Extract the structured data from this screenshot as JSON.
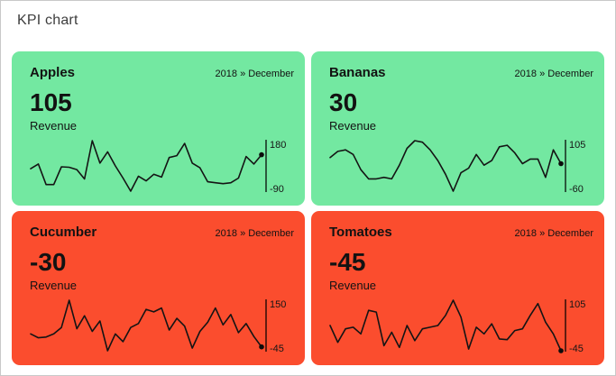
{
  "page": {
    "title": "KPI chart"
  },
  "colors": {
    "positive_card_bg": "#73e8a1",
    "negative_card_bg": "#fb4d2e",
    "sparkline_stroke": "#141414",
    "axis_stroke": "rgba(0,0,0,0.62)",
    "page_border": "#c9c9c9",
    "title_text": "#3d3d3d"
  },
  "cards": [
    {
      "name": "Apples",
      "period": "2018 » December",
      "value": "105",
      "metric_label": "Revenue",
      "bg_color": "#73e8a1",
      "axis_max": "180",
      "axis_min": "-90"
    },
    {
      "name": "Bananas",
      "period": "2018 » December",
      "value": "30",
      "metric_label": "Revenue",
      "bg_color": "#73e8a1",
      "axis_max": "105",
      "axis_min": "-60"
    },
    {
      "name": "Cucumber",
      "period": "2018 » December",
      "value": "-30",
      "metric_label": "Revenue",
      "bg_color": "#fb4d2e",
      "axis_max": "150",
      "axis_min": "-45"
    },
    {
      "name": "Tomatoes",
      "period": "2018 » December",
      "value": "-45",
      "metric_label": "Revenue",
      "bg_color": "#fb4d2e",
      "axis_max": "105",
      "axis_min": "-45"
    }
  ],
  "chart_data": [
    {
      "type": "line",
      "title": "Apples",
      "subtitle": "2018 » December",
      "kpi_label": "Revenue",
      "kpi_value": 105,
      "ylim": [
        -90,
        180
      ],
      "grid": false,
      "legend": "none",
      "axis_labels": {
        "max": "180",
        "min": "-90"
      },
      "values": [
        30,
        55,
        -55,
        -55,
        40,
        38,
        25,
        -25,
        180,
        60,
        120,
        45,
        -20,
        -90,
        -10,
        -35,
        0,
        -15,
        90,
        100,
        165,
        60,
        35,
        -40,
        -45,
        -50,
        -45,
        -20,
        95,
        55,
        105
      ]
    },
    {
      "type": "line",
      "title": "Bananas",
      "subtitle": "2018 » December",
      "kpi_label": "Revenue",
      "kpi_value": 30,
      "ylim": [
        -60,
        105
      ],
      "grid": false,
      "legend": "none",
      "axis_labels": {
        "max": "105",
        "min": "-60"
      },
      "values": [
        50,
        70,
        75,
        60,
        10,
        -20,
        -20,
        -15,
        -20,
        25,
        80,
        105,
        100,
        75,
        40,
        -5,
        -60,
        0,
        15,
        60,
        25,
        40,
        85,
        90,
        65,
        30,
        45,
        45,
        -15,
        75,
        30
      ]
    },
    {
      "type": "line",
      "title": "Cucumber",
      "subtitle": "2018 » December",
      "kpi_label": "Revenue",
      "kpi_value": -30,
      "ylim": [
        -45,
        150
      ],
      "grid": false,
      "legend": "none",
      "axis_labels": {
        "max": "150",
        "min": "-45"
      },
      "values": [
        20,
        5,
        8,
        20,
        45,
        150,
        40,
        90,
        30,
        70,
        -45,
        20,
        -10,
        45,
        60,
        115,
        105,
        120,
        35,
        80,
        50,
        -35,
        30,
        65,
        120,
        55,
        95,
        25,
        60,
        10,
        -30
      ]
    },
    {
      "type": "line",
      "title": "Tomatoes",
      "subtitle": "2018 » December",
      "kpi_label": "Revenue",
      "kpi_value": -45,
      "ylim": [
        -45,
        105
      ],
      "grid": false,
      "legend": "none",
      "axis_labels": {
        "max": "105",
        "min": "-45"
      },
      "values": [
        30,
        -20,
        20,
        25,
        5,
        75,
        70,
        -30,
        10,
        -35,
        30,
        -15,
        20,
        25,
        30,
        60,
        105,
        55,
        -40,
        25,
        5,
        35,
        -10,
        -12,
        15,
        20,
        60,
        95,
        40,
        5,
        -45
      ]
    }
  ]
}
